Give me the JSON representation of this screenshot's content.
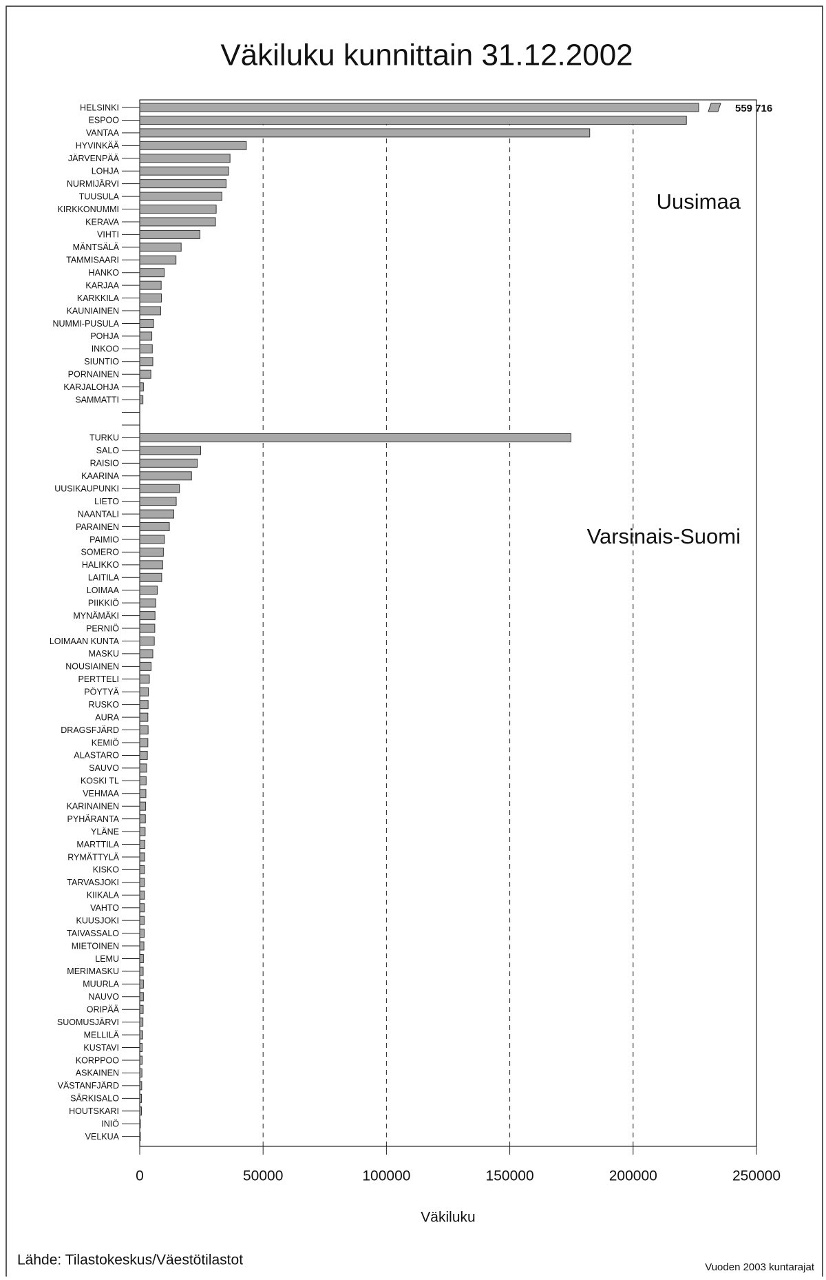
{
  "chart_data": {
    "type": "hbar",
    "title": "Väkiluku kunnittain 31.12.2002",
    "x_label": "Väkiluku",
    "annotations": [
      "Uusimaa",
      "Varsinais-Suomi"
    ],
    "source": "Lähde: Tilastokeskus/Väestötilastot",
    "note": "Vuoden 2003 kuntarajat",
    "color": "#a8a8a8",
    "grid": true,
    "xlim": [
      0,
      250000
    ],
    "xticks": [
      0,
      50000,
      100000,
      150000,
      200000,
      250000
    ],
    "categories": [
      "HELSINKI",
      "ESPOO",
      "VANTAA",
      "HYVINKÄÄ",
      "JÄRVENPÄÄ",
      "LOHJA",
      "NURMIJÄRVI",
      "TUUSULA",
      "KIRKKONUMMI",
      "KERAVA",
      "VIHTI",
      "MÄNTSÄLÄ",
      "TAMMISAARI",
      "HANKO",
      "KARJAA",
      "KARKKILA",
      "KAUNIAINEN",
      "NUMMI-PUSULA",
      "POHJA",
      "INKOO",
      "SIUNTIO",
      "PORNAINEN",
      "KARJALOHJA",
      "SAMMATTI",
      null,
      null,
      "TURKU",
      "SALO",
      "RAISIO",
      "KAARINA",
      "UUSIKAUPUNKI",
      "LIETO",
      "NAANTALI",
      "PARAINEN",
      "PAIMIO",
      "SOMERO",
      "HALIKKO",
      "LAITILA",
      "LOIMAA",
      "PIIKKIÖ",
      "MYNÄMÄKI",
      "PERNIÖ",
      "LOIMAAN KUNTA",
      "MASKU",
      "NOUSIAINEN",
      "PERTTELI",
      "PÖYTYÄ",
      "RUSKO",
      "AURA",
      "DRAGSFJÄRD",
      "KEMIÖ",
      "ALASTARO",
      "SAUVO",
      "KOSKI TL",
      "VEHMAA",
      "KARINAINEN",
      "PYHÄRANTA",
      "YLÄNE",
      "MARTTILA",
      "RYMÄTTYLÄ",
      "KISKO",
      "TARVASJOKI",
      "KIIKALA",
      "VAHTO",
      "KUUSJOKI",
      "TAIVASSALO",
      "MIETOINEN",
      "LEMU",
      "MERIMASKU",
      "MUURLA",
      "NAUVO",
      "ORIPÄÄ",
      "SUOMUSJÄRVI",
      "MELLILÄ",
      "KUSTAVI",
      "KORPPOO",
      "ASKAINEN",
      "VÄSTANFJÄRD",
      "SÄRKISALO",
      "HOUTSKARI",
      "INIÖ",
      "VELKUA"
    ],
    "values": [
      559716,
      221600,
      182400,
      43200,
      36600,
      36000,
      35000,
      33300,
      31000,
      30700,
      24400,
      16800,
      14700,
      9900,
      8700,
      8800,
      8500,
      5600,
      4900,
      5100,
      5300,
      4500,
      1500,
      1300,
      null,
      null,
      174800,
      24700,
      23300,
      21000,
      16100,
      14800,
      13800,
      12000,
      10000,
      9600,
      9300,
      8900,
      7100,
      6500,
      6200,
      6100,
      5900,
      5300,
      4600,
      3900,
      3500,
      3400,
      3300,
      3400,
      3300,
      3100,
      2800,
      2600,
      2500,
      2400,
      2300,
      2200,
      2100,
      2000,
      1900,
      1900,
      1900,
      1900,
      1800,
      1800,
      1700,
      1500,
      1400,
      1500,
      1500,
      1400,
      1300,
      1200,
      1000,
      1000,
      900,
      800,
      700,
      700,
      250,
      250
    ],
    "value_labels": [
      "559 716",
      null,
      null,
      null,
      null,
      null,
      null,
      null,
      null,
      null,
      null,
      null,
      null,
      null,
      null,
      null,
      null,
      null,
      null,
      null,
      null,
      null,
      null,
      null,
      null,
      null,
      null,
      null,
      null,
      null,
      null,
      null,
      null,
      null,
      null,
      null,
      null,
      null,
      null,
      null,
      null,
      null,
      null,
      null,
      null,
      null,
      null,
      null,
      null,
      null,
      null,
      null,
      null,
      null,
      null,
      null,
      null,
      null,
      null,
      null,
      null,
      null,
      null,
      null,
      null,
      null,
      null,
      null,
      null,
      null,
      null,
      null,
      null,
      null,
      null,
      null,
      null,
      null,
      null,
      null,
      null,
      null
    ]
  }
}
